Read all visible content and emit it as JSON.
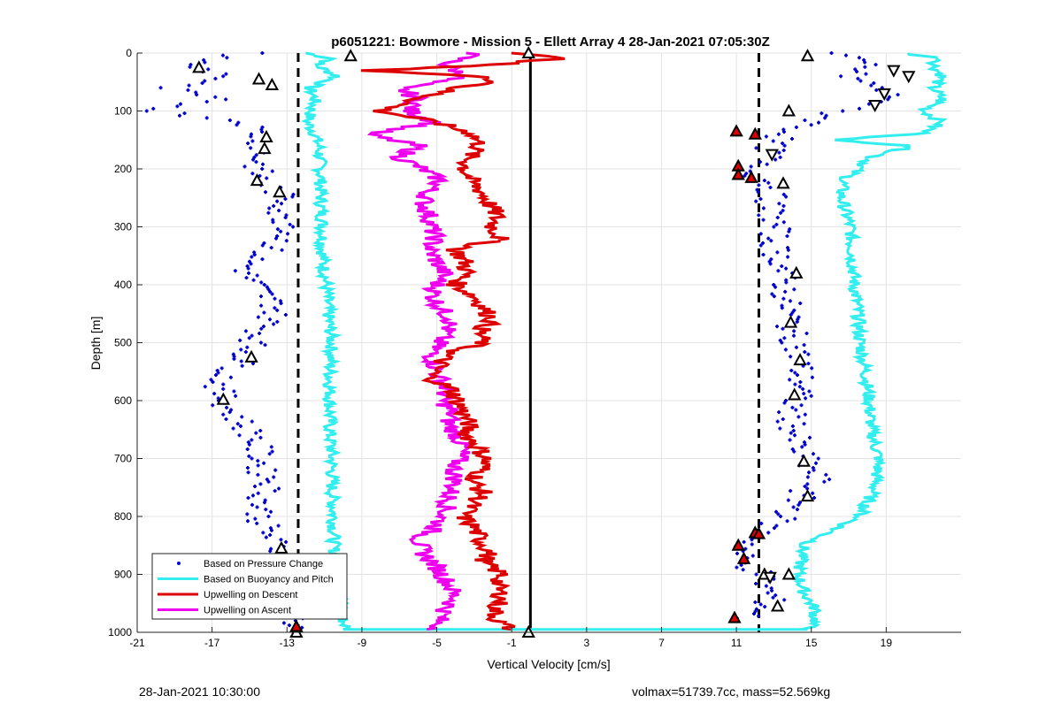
{
  "chart_data": {
    "type": "scatter",
    "title": "p6051221: Bowmore - Mission 5 - Ellett Array 4 28-Jan-2021 07:05:30Z",
    "xlabel": "Vertical Velocity [cm/s]",
    "ylabel": "Depth [m]",
    "xlim": [
      -21,
      23
    ],
    "ylim": [
      0,
      1000
    ],
    "y_reversed": true,
    "grid": true,
    "legend_position": "bottom-left",
    "x_ticks": [
      -21,
      -17,
      -13,
      -9,
      -5,
      -1,
      3,
      7,
      11,
      15,
      19
    ],
    "y_ticks": [
      0,
      100,
      200,
      300,
      400,
      500,
      600,
      700,
      800,
      900,
      1000
    ],
    "x_tick_labels": [
      "-21",
      "-17",
      "-13",
      "-9",
      "-5",
      "-1",
      "3",
      "7",
      "11",
      "15",
      "19"
    ],
    "y_tick_labels": [
      "0",
      "100",
      "200",
      "300",
      "400",
      "500",
      "600",
      "700",
      "800",
      "900",
      "1000"
    ],
    "colors": {
      "pressure": "#0000cc",
      "buoyancy": "#33eeee",
      "descent": "#dd0000",
      "ascent": "#ee00ee",
      "reference": "#000000",
      "grid": "#e3e3e3"
    },
    "reference_lines": {
      "dashed_left": -12.4,
      "dashed_right": 12.2,
      "solid_zero": 0
    },
    "series": [
      {
        "name": "Based on Pressure Change",
        "style": "dots",
        "groups": [
          {
            "depth": [
              0,
              20,
              40,
              60,
              80,
              100,
              120,
              140,
              160,
              180,
              200,
              220,
              240,
              260,
              280,
              300,
              320,
              340,
              360,
              380,
              400,
              420,
              440,
              460,
              480,
              500,
              520,
              540,
              560,
              580,
              600,
              620,
              640,
              660,
              680,
              700,
              720,
              740,
              760,
              780,
              800,
              820,
              840,
              860,
              880,
              900,
              920,
              940,
              960,
              980,
              995
            ],
            "velocity": [
              -15,
              -18.5,
              -16,
              -19.5,
              -17,
              -20,
              -15,
              -14.5,
              -14.3,
              -14.5,
              -14.6,
              -14.4,
              -13.5,
              -13,
              -13.6,
              -12.6,
              -13.2,
              -14,
              -15,
              -15.2,
              -14.7,
              -14.1,
              -13.5,
              -13.9,
              -14.4,
              -14.8,
              -15.2,
              -15.6,
              -16.4,
              -16.7,
              -16.3,
              -16,
              -15.4,
              -14.8,
              -14.6,
              -14.4,
              -14.4,
              -13.8,
              -14.2,
              -14.4,
              -14.4,
              -14.2,
              -13.8,
              -13.4,
              -12.9,
              -12.6,
              -12.2,
              -12.4,
              -12.6,
              -12.6,
              -12.5
            ]
          },
          {
            "depth": [
              0,
              20,
              40,
              60,
              80,
              100,
              120,
              140,
              160,
              180,
              200,
              220,
              240,
              260,
              280,
              300,
              320,
              340,
              360,
              380,
              400,
              420,
              440,
              460,
              480,
              500,
              520,
              540,
              560,
              580,
              600,
              620,
              640,
              660,
              680,
              700,
              720,
              740,
              760,
              780,
              800,
              820,
              840,
              860,
              880,
              900,
              920,
              940,
              960,
              980
            ],
            "velocity": [
              16,
              18,
              17,
              18.5,
              19.5,
              16.5,
              15,
              13.5,
              12.8,
              12.8,
              11.5,
              12.6,
              12.9,
              12.8,
              12.9,
              13.1,
              13,
              13.1,
              13.4,
              13.5,
              13.6,
              13.6,
              13.7,
              13.9,
              13.9,
              14.2,
              14.3,
              14.4,
              14.4,
              14.5,
              14.1,
              13.9,
              14,
              14.1,
              14.2,
              14.6,
              15,
              15.3,
              14.4,
              14.3,
              13.6,
              12.6,
              12,
              11.2,
              11.3,
              12.4,
              12.5,
              12.9,
              12.4,
              11.3
            ]
          }
        ]
      },
      {
        "name": "Based on Buoyancy and Pitch",
        "style": "line",
        "groups": [
          {
            "depth": [
              0,
              10,
              20,
              40,
              60,
              80,
              100,
              120,
              140,
              160,
              200,
              250,
              300,
              350,
              400,
              450,
              500,
              550,
              600,
              650,
              700,
              750,
              800,
              850,
              900,
              950,
              980,
              995
            ],
            "velocity": [
              -12,
              -10.5,
              -11.5,
              -10.3,
              -11.8,
              -11.5,
              -11.7,
              -11.9,
              -11.5,
              -11.3,
              -11.2,
              -11.2,
              -11.1,
              -11.1,
              -10.9,
              -10.8,
              -10.6,
              -10.7,
              -10.7,
              -10.7,
              -10.6,
              -10.6,
              -10.5,
              -10.5,
              -10.3,
              -10.1,
              -10,
              -9.8
            ]
          },
          {
            "depth": [
              0,
              10,
              20,
              40,
              60,
              80,
              100,
              120,
              140,
              150,
              160,
              180,
              200,
              220,
              250,
              300,
              350,
              400,
              450,
              500,
              550,
              600,
              650,
              700,
              750,
              800,
              820,
              850,
              900,
              930,
              960,
              980,
              995
            ],
            "velocity": [
              20,
              22,
              21.5,
              22,
              21.5,
              22,
              21,
              22,
              20.8,
              16,
              20.5,
              18.2,
              17.5,
              16.7,
              16.6,
              17.1,
              17.2,
              17.3,
              17.5,
              17.6,
              17.9,
              18.1,
              18.2,
              18.6,
              18.4,
              17.6,
              16.4,
              14.6,
              14.3,
              14.6,
              15.2,
              15.2,
              14.8
            ]
          }
        ]
      },
      {
        "name": "Upwelling on Descent",
        "style": "line",
        "depth": [
          0,
          10,
          20,
          30,
          40,
          50,
          60,
          80,
          100,
          120,
          140,
          160,
          180,
          200,
          220,
          240,
          260,
          280,
          300,
          320,
          340,
          360,
          380,
          400,
          420,
          440,
          460,
          480,
          500,
          520,
          540,
          560,
          580,
          600,
          620,
          640,
          660,
          680,
          700,
          720,
          740,
          760,
          780,
          800,
          820,
          840,
          860,
          880,
          900,
          920,
          940,
          960,
          980,
          995
        ],
        "velocity": [
          -0.5,
          1.5,
          -2,
          -8.5,
          -3,
          -1.5,
          -4,
          -6,
          -8,
          -5,
          -3,
          -2.7,
          -3.3,
          -3.5,
          -3.2,
          -2.6,
          -2.2,
          -1.8,
          -2,
          -1.6,
          -4,
          -3.5,
          -3.4,
          -4,
          -3,
          -2.5,
          -2,
          -2.7,
          -2.6,
          -4.5,
          -4.9,
          -5.4,
          -4.2,
          -3.9,
          -3.6,
          -3.3,
          -3.4,
          -2.8,
          -2.4,
          -2.6,
          -3.1,
          -2.5,
          -3.1,
          -3.6,
          -3,
          -2.7,
          -2.2,
          -2.5,
          -1.5,
          -1.8,
          -1.5,
          -1.9,
          -1.8,
          -1
        ]
      },
      {
        "name": "Upwelling on Ascent",
        "style": "line",
        "depth": [
          0,
          20,
          40,
          60,
          80,
          100,
          120,
          140,
          160,
          180,
          200,
          220,
          240,
          260,
          280,
          300,
          320,
          340,
          360,
          380,
          400,
          420,
          440,
          460,
          480,
          500,
          520,
          540,
          560,
          580,
          600,
          620,
          640,
          660,
          680,
          700,
          720,
          740,
          760,
          780,
          800,
          820,
          840,
          860,
          880,
          900,
          920,
          940,
          960,
          980,
          995
        ],
        "velocity": [
          -3,
          -4.5,
          -3.5,
          -7,
          -6,
          -6.5,
          -5,
          -8.8,
          -6,
          -7,
          -5.8,
          -4.8,
          -5.5,
          -5.7,
          -5.4,
          -5.3,
          -5.1,
          -5.4,
          -5,
          -4.6,
          -5,
          -5.2,
          -4.8,
          -4.2,
          -4.5,
          -4.9,
          -5.3,
          -5.1,
          -4.9,
          -4.5,
          -4.7,
          -4.2,
          -4.4,
          -3.9,
          -3.6,
          -3.8,
          -4.1,
          -4,
          -4.3,
          -4.4,
          -4.7,
          -5.1,
          -6,
          -5.8,
          -5.2,
          -4.7,
          -4.3,
          -4,
          -4.5,
          -4.9,
          -5
        ]
      }
    ],
    "markers": [
      {
        "style": "tri-up-open",
        "points": [
          [
            -17.7,
            25
          ],
          [
            -14.5,
            45
          ],
          [
            -13.8,
            55
          ],
          [
            -14.1,
            145
          ],
          [
            -14.2,
            165
          ],
          [
            -14.6,
            220
          ],
          [
            -13.4,
            240
          ],
          [
            -14.9,
            525
          ],
          [
            -16.4,
            598
          ],
          [
            -13.3,
            855
          ],
          [
            -12.5,
            928
          ],
          [
            -12.5,
            1000
          ],
          [
            13.8,
            100
          ],
          [
            13.5,
            225
          ],
          [
            14.2,
            380
          ],
          [
            13.9,
            465
          ],
          [
            14.4,
            530
          ],
          [
            14.1,
            590
          ],
          [
            14.6,
            705
          ],
          [
            14.8,
            765
          ],
          [
            13.8,
            900
          ],
          [
            12.5,
            900
          ],
          [
            13.2,
            955
          ],
          [
            14.8,
            5
          ],
          [
            -9.6,
            5
          ],
          [
            -0.1,
            0
          ],
          [
            -0.1,
            1000
          ]
        ]
      },
      {
        "style": "tri-up-red",
        "points": [
          [
            11.0,
            135
          ],
          [
            12.0,
            140
          ],
          [
            11.1,
            195
          ],
          [
            11.1,
            210
          ],
          [
            11.8,
            215
          ],
          [
            12.0,
            828
          ],
          [
            12.2,
            830
          ],
          [
            11.1,
            850
          ],
          [
            11.4,
            873
          ],
          [
            10.9,
            975
          ],
          [
            -12.5,
            990
          ]
        ]
      },
      {
        "style": "tri-down-open",
        "points": [
          [
            19.4,
            30
          ],
          [
            20.2,
            40
          ],
          [
            18.9,
            70
          ],
          [
            18.4,
            90
          ],
          [
            12.9,
            175
          ],
          [
            12.8,
            905
          ]
        ]
      }
    ],
    "legend": [
      {
        "label": "Based on Pressure Change",
        "color": "#0000cc",
        "style": "dot"
      },
      {
        "label": "Based on Buoyancy and Pitch",
        "color": "#33eeee",
        "style": "line"
      },
      {
        "label": "Upwelling on Descent",
        "color": "#dd0000",
        "style": "line"
      },
      {
        "label": "Upwelling on Ascent",
        "color": "#ee00ee",
        "style": "line"
      }
    ]
  },
  "footer": {
    "timestamp": "28-Jan-2021 10:30:00",
    "summary": "volmax=51739.7cc, mass=52.569kg"
  }
}
